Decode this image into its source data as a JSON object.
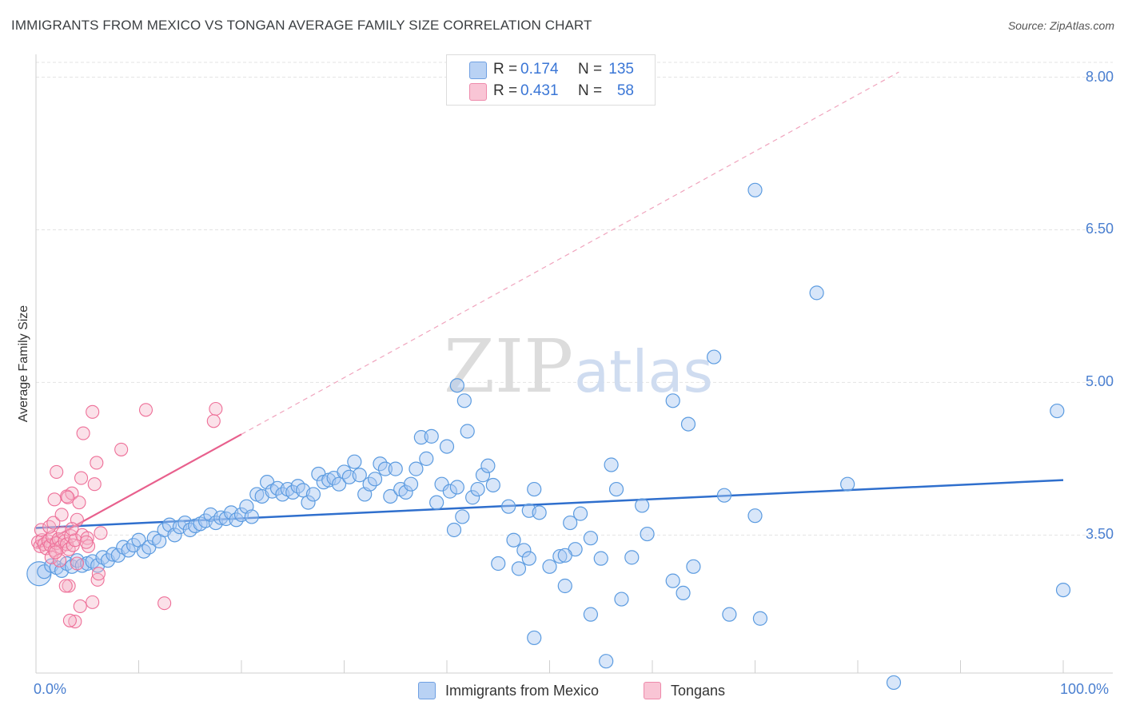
{
  "header": {
    "title": "IMMIGRANTS FROM MEXICO VS TONGAN AVERAGE FAMILY SIZE CORRELATION CHART",
    "source": "Source: ZipAtlas.com"
  },
  "watermark": {
    "zip": "ZIP",
    "atlas": "atlas"
  },
  "colors": {
    "blue": "#5b9be0",
    "blue_fill": "#a9c8f2",
    "blue_line": "#2f6fcd",
    "pink": "#ee6f98",
    "pink_fill": "#f6b3c8",
    "pink_line": "#e8608d",
    "axis_text": "#4a7fd0"
  },
  "legend": {
    "rows": [
      {
        "r_label": "R =",
        "r_value": "0.174",
        "n_label": "N =",
        "n_value": "135"
      },
      {
        "r_label": "R =",
        "r_value": "0.431",
        "n_label": "N =",
        "n_value": "58"
      }
    ]
  },
  "chart_data": {
    "type": "scatter",
    "title": "IMMIGRANTS FROM MEXICO VS TONGAN AVERAGE FAMILY SIZE CORRELATION CHART",
    "xlabel": "",
    "ylabel": "Average Family Size",
    "xlim": [
      0,
      100
    ],
    "ylim": [
      2.0,
      8.2
    ],
    "y_ticks": [
      3.5,
      5.0,
      6.5,
      8.0
    ],
    "y_tick_labels": [
      "3.50",
      "5.00",
      "6.50",
      "8.00"
    ],
    "x_tick_labels": [
      "0.0%",
      "100.0%"
    ],
    "grid": true,
    "legend_position": "top-center",
    "series": [
      {
        "name": "Immigrants from Mexico",
        "color": "blue",
        "R": 0.174,
        "N": 135,
        "trend": {
          "x": [
            0,
            100
          ],
          "y": [
            3.57,
            4.04
          ]
        },
        "points": [
          [
            0.3,
            3.12
          ],
          [
            0.8,
            3.14
          ],
          [
            1.5,
            3.2
          ],
          [
            2,
            3.18
          ],
          [
            2.5,
            3.15
          ],
          [
            3,
            3.22
          ],
          [
            3.5,
            3.19
          ],
          [
            4,
            3.25
          ],
          [
            4.5,
            3.2
          ],
          [
            5,
            3.22
          ],
          [
            5.5,
            3.24
          ],
          [
            6,
            3.2
          ],
          [
            6.5,
            3.28
          ],
          [
            7,
            3.25
          ],
          [
            7.5,
            3.31
          ],
          [
            8,
            3.3
          ],
          [
            8.5,
            3.38
          ],
          [
            9,
            3.35
          ],
          [
            9.5,
            3.4
          ],
          [
            10,
            3.45
          ],
          [
            10.5,
            3.34
          ],
          [
            11,
            3.38
          ],
          [
            11.5,
            3.47
          ],
          [
            12,
            3.44
          ],
          [
            12.5,
            3.55
          ],
          [
            13,
            3.6
          ],
          [
            13.5,
            3.5
          ],
          [
            14,
            3.58
          ],
          [
            14.5,
            3.62
          ],
          [
            15,
            3.55
          ],
          [
            15.5,
            3.59
          ],
          [
            16,
            3.61
          ],
          [
            16.5,
            3.64
          ],
          [
            17,
            3.7
          ],
          [
            17.5,
            3.62
          ],
          [
            18,
            3.67
          ],
          [
            18.5,
            3.66
          ],
          [
            19,
            3.72
          ],
          [
            19.5,
            3.65
          ],
          [
            20,
            3.7
          ],
          [
            20.5,
            3.78
          ],
          [
            21,
            3.68
          ],
          [
            21.5,
            3.9
          ],
          [
            22,
            3.88
          ],
          [
            22.5,
            4.02
          ],
          [
            23,
            3.93
          ],
          [
            23.5,
            3.96
          ],
          [
            24,
            3.9
          ],
          [
            24.5,
            3.95
          ],
          [
            25,
            3.92
          ],
          [
            25.5,
            3.98
          ],
          [
            26,
            3.94
          ],
          [
            26.5,
            3.82
          ],
          [
            27,
            3.9
          ],
          [
            27.5,
            4.1
          ],
          [
            28,
            4.02
          ],
          [
            28.5,
            4.04
          ],
          [
            29,
            4.06
          ],
          [
            29.5,
            4.0
          ],
          [
            30,
            4.12
          ],
          [
            30.5,
            4.07
          ],
          [
            31,
            4.22
          ],
          [
            31.5,
            4.09
          ],
          [
            32,
            3.9
          ],
          [
            32.5,
            4.0
          ],
          [
            33,
            4.05
          ],
          [
            33.5,
            4.2
          ],
          [
            34,
            4.15
          ],
          [
            34.5,
            3.88
          ],
          [
            35,
            4.15
          ],
          [
            35.5,
            3.95
          ],
          [
            36,
            3.92
          ],
          [
            36.5,
            4.0
          ],
          [
            37,
            4.15
          ],
          [
            37.5,
            4.46
          ],
          [
            38,
            4.25
          ],
          [
            38.5,
            4.47
          ],
          [
            39,
            3.82
          ],
          [
            39.5,
            4.0
          ],
          [
            40,
            4.37
          ],
          [
            40.3,
            3.93
          ],
          [
            40.7,
            3.55
          ],
          [
            41,
            3.97
          ],
          [
            41.5,
            3.68
          ],
          [
            42,
            4.52
          ],
          [
            42.5,
            3.87
          ],
          [
            43,
            3.95
          ],
          [
            43.5,
            4.09
          ],
          [
            44,
            4.18
          ],
          [
            44.5,
            3.99
          ],
          [
            45,
            3.22
          ],
          [
            46,
            3.78
          ],
          [
            46.5,
            3.45
          ],
          [
            47,
            3.17
          ],
          [
            47.5,
            3.35
          ],
          [
            48,
            3.74
          ],
          [
            48.5,
            3.95
          ],
          [
            49,
            3.72
          ],
          [
            50,
            3.19
          ],
          [
            51,
            3.29
          ],
          [
            51.5,
            3.0
          ],
          [
            52,
            3.62
          ],
          [
            52.5,
            3.36
          ],
          [
            53,
            3.71
          ],
          [
            54,
            3.47
          ],
          [
            55,
            3.27
          ],
          [
            56,
            4.19
          ],
          [
            56.5,
            3.95
          ],
          [
            57,
            2.87
          ],
          [
            58,
            3.28
          ],
          [
            59,
            3.79
          ],
          [
            62,
            3.05
          ],
          [
            63,
            2.93
          ],
          [
            64,
            3.19
          ],
          [
            67,
            3.89
          ],
          [
            67.5,
            2.72
          ],
          [
            70,
            3.69
          ],
          [
            79,
            4.0
          ],
          [
            100,
            2.96
          ],
          [
            99.4,
            4.72
          ],
          [
            70,
            6.89
          ],
          [
            76,
            5.88
          ],
          [
            66,
            5.25
          ],
          [
            41,
            4.97
          ],
          [
            41.7,
            4.82
          ],
          [
            62,
            4.82
          ],
          [
            63.5,
            4.59
          ],
          [
            48.5,
            2.49
          ],
          [
            55.5,
            2.26
          ],
          [
            70.5,
            2.68
          ],
          [
            83.5,
            2.05
          ],
          [
            48,
            3.27
          ],
          [
            54,
            2.72
          ],
          [
            51.5,
            3.3
          ],
          [
            59.5,
            3.51
          ]
        ]
      },
      {
        "name": "Tongans",
        "color": "pink",
        "R": 0.431,
        "N": 58,
        "trend": {
          "x": [
            0,
            20
          ],
          "y": [
            3.38,
            4.49
          ]
        },
        "trend_extension": {
          "x": [
            20,
            84
          ],
          "y": [
            4.49,
            8.05
          ]
        },
        "points": [
          [
            0.2,
            3.43
          ],
          [
            0.4,
            3.39
          ],
          [
            0.6,
            3.45
          ],
          [
            0.8,
            3.41
          ],
          [
            1,
            3.37
          ],
          [
            1.2,
            3.44
          ],
          [
            1.4,
            3.4
          ],
          [
            1.6,
            3.48
          ],
          [
            1.8,
            3.35
          ],
          [
            2,
            3.42
          ],
          [
            2.2,
            3.46
          ],
          [
            2.4,
            3.38
          ],
          [
            2.6,
            3.52
          ],
          [
            2.8,
            3.44
          ],
          [
            3,
            3.41
          ],
          [
            3.2,
            3.36
          ],
          [
            3.4,
            3.49
          ],
          [
            3.6,
            3.4
          ],
          [
            3.8,
            3.45
          ],
          [
            0.5,
            3.55
          ],
          [
            1.3,
            3.58
          ],
          [
            1.5,
            3.28
          ],
          [
            1.7,
            3.62
          ],
          [
            2.5,
            3.7
          ],
          [
            3,
            3.88
          ],
          [
            3.5,
            3.91
          ],
          [
            4,
            3.65
          ],
          [
            4.5,
            3.5
          ],
          [
            5,
            3.47
          ],
          [
            4.2,
            3.82
          ],
          [
            1.8,
            3.85
          ],
          [
            2,
            4.12
          ],
          [
            3.2,
            3.0
          ],
          [
            3.8,
            2.65
          ],
          [
            4.3,
            2.8
          ],
          [
            4.6,
            4.5
          ],
          [
            5.5,
            4.71
          ],
          [
            5.9,
            4.21
          ],
          [
            5.7,
            4.0
          ],
          [
            4.4,
            4.06
          ],
          [
            6,
            3.06
          ],
          [
            6.1,
            3.12
          ],
          [
            8.3,
            4.34
          ],
          [
            10.7,
            4.73
          ],
          [
            17.5,
            4.74
          ],
          [
            17.3,
            4.62
          ],
          [
            12.5,
            2.83
          ],
          [
            5.5,
            2.84
          ],
          [
            6.3,
            3.52
          ],
          [
            4,
            3.22
          ],
          [
            2.9,
            3.0
          ],
          [
            3.1,
            3.87
          ],
          [
            3.5,
            3.56
          ],
          [
            2.3,
            3.25
          ],
          [
            1.9,
            3.33
          ],
          [
            5.1,
            3.39
          ],
          [
            4.9,
            3.43
          ],
          [
            3.3,
            2.66
          ]
        ]
      }
    ]
  }
}
